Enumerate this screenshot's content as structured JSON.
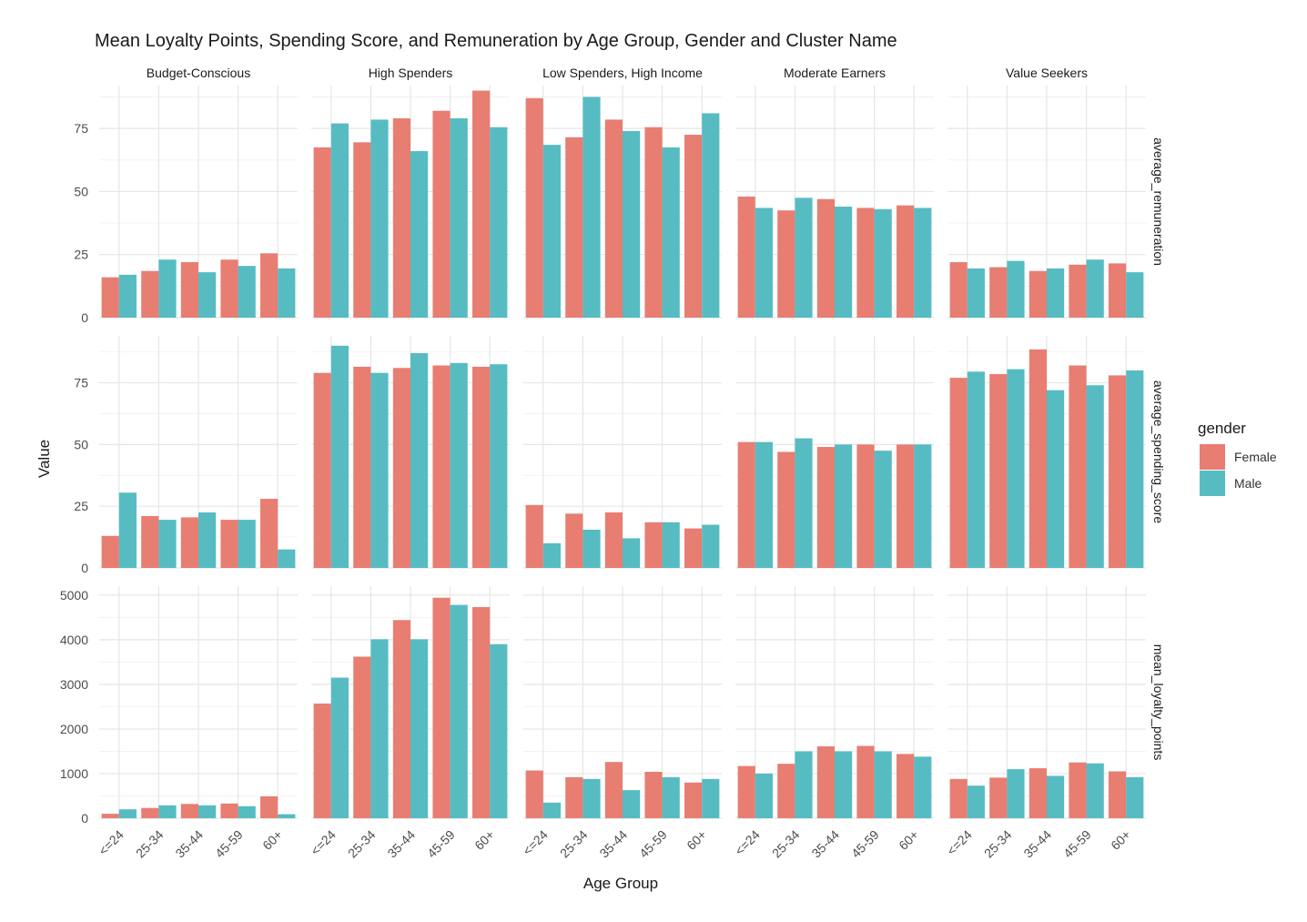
{
  "chart_data": {
    "type": "bar",
    "title": "Mean Loyalty Points, Spending Score, and Remuneration by Age Group, Gender and Cluster Name",
    "xlabel": "Age Group",
    "ylabel": "Value",
    "categories": [
      "<=24",
      "25-34",
      "35-44",
      "45-59",
      "60+"
    ],
    "facet_columns": [
      "Budget-Conscious",
      "High Spenders",
      "Low Spenders, High Income",
      "Moderate Earners",
      "Value Seekers"
    ],
    "legend": {
      "title": "gender",
      "position": "right",
      "entries": [
        {
          "label": "Female",
          "color": "#E87D72"
        },
        {
          "label": "Male",
          "color": "#56BCC2"
        }
      ]
    },
    "grid": true,
    "rows": [
      {
        "metric": "average_remuneration",
        "ylim": [
          0,
          92
        ],
        "yticks": [
          0,
          25,
          50,
          75
        ],
        "panels": [
          {
            "facet": "Budget-Conscious",
            "series": [
              {
                "name": "Female",
                "values": [
                  16,
                  18.5,
                  22,
                  23,
                  25.5
                ]
              },
              {
                "name": "Male",
                "values": [
                  17,
                  23,
                  18,
                  20.5,
                  19.5
                ]
              }
            ]
          },
          {
            "facet": "High Spenders",
            "series": [
              {
                "name": "Female",
                "values": [
                  67.5,
                  69.5,
                  79,
                  82,
                  90
                ]
              },
              {
                "name": "Male",
                "values": [
                  77,
                  78.5,
                  66,
                  79,
                  75.5
                ]
              }
            ]
          },
          {
            "facet": "Low Spenders, High Income",
            "series": [
              {
                "name": "Female",
                "values": [
                  87,
                  71.5,
                  78.5,
                  75.5,
                  72.5
                ]
              },
              {
                "name": "Male",
                "values": [
                  68.5,
                  87.5,
                  74,
                  67.5,
                  81
                ]
              }
            ]
          },
          {
            "facet": "Moderate Earners",
            "series": [
              {
                "name": "Female",
                "values": [
                  48,
                  42.5,
                  47,
                  43.5,
                  44.5
                ]
              },
              {
                "name": "Male",
                "values": [
                  43.5,
                  47.5,
                  44,
                  43,
                  43.5
                ]
              }
            ]
          },
          {
            "facet": "Value Seekers",
            "series": [
              {
                "name": "Female",
                "values": [
                  22,
                  20,
                  18.5,
                  21,
                  21.5
                ]
              },
              {
                "name": "Male",
                "values": [
                  19.5,
                  22.5,
                  19.5,
                  23,
                  18
                ]
              }
            ]
          }
        ]
      },
      {
        "metric": "average_spending_score",
        "ylim": [
          0,
          94
        ],
        "yticks": [
          0,
          25,
          50,
          75
        ],
        "panels": [
          {
            "facet": "Budget-Conscious",
            "series": [
              {
                "name": "Female",
                "values": [
                  13,
                  21,
                  20.5,
                  19.5,
                  28
                ]
              },
              {
                "name": "Male",
                "values": [
                  30.5,
                  19.5,
                  22.5,
                  19.5,
                  7.5
                ]
              }
            ]
          },
          {
            "facet": "High Spenders",
            "series": [
              {
                "name": "Female",
                "values": [
                  79,
                  81.5,
                  81,
                  82,
                  81.5
                ]
              },
              {
                "name": "Male",
                "values": [
                  90,
                  79,
                  87,
                  83,
                  82.5
                ]
              }
            ]
          },
          {
            "facet": "Low Spenders, High Income",
            "series": [
              {
                "name": "Female",
                "values": [
                  25.5,
                  22,
                  22.5,
                  18.5,
                  16
                ]
              },
              {
                "name": "Male",
                "values": [
                  10,
                  15.5,
                  12,
                  18.5,
                  17.5
                ]
              }
            ]
          },
          {
            "facet": "Moderate Earners",
            "series": [
              {
                "name": "Female",
                "values": [
                  51,
                  47,
                  49,
                  50,
                  50
                ]
              },
              {
                "name": "Male",
                "values": [
                  51,
                  52.5,
                  50,
                  47.5,
                  50
                ]
              }
            ]
          },
          {
            "facet": "Value Seekers",
            "series": [
              {
                "name": "Female",
                "values": [
                  77,
                  78.5,
                  88.5,
                  82,
                  78
                ]
              },
              {
                "name": "Male",
                "values": [
                  79.5,
                  80.5,
                  72,
                  74,
                  80
                ]
              }
            ]
          }
        ]
      },
      {
        "metric": "mean_loyalty_points",
        "ylim": [
          0,
          5200
        ],
        "yticks": [
          0,
          1000,
          2000,
          3000,
          4000,
          5000
        ],
        "panels": [
          {
            "facet": "Budget-Conscious",
            "series": [
              {
                "name": "Female",
                "values": [
                  100,
                  230,
                  320,
                  330,
                  490
                ]
              },
              {
                "name": "Male",
                "values": [
                  200,
                  290,
                  290,
                  270,
                  90
                ]
              }
            ]
          },
          {
            "facet": "High Spenders",
            "series": [
              {
                "name": "Female",
                "values": [
                  2570,
                  3620,
                  4440,
                  4940,
                  4730
                ]
              },
              {
                "name": "Male",
                "values": [
                  3150,
                  4010,
                  4010,
                  4780,
                  3900
                ]
              }
            ]
          },
          {
            "facet": "Low Spenders, High Income",
            "series": [
              {
                "name": "Female",
                "values": [
                  1070,
                  920,
                  1260,
                  1040,
                  800
                ]
              },
              {
                "name": "Male",
                "values": [
                  350,
                  880,
                  630,
                  920,
                  880
                ]
              }
            ]
          },
          {
            "facet": "Moderate Earners",
            "series": [
              {
                "name": "Female",
                "values": [
                  1170,
                  1220,
                  1610,
                  1620,
                  1440
                ]
              },
              {
                "name": "Male",
                "values": [
                  1000,
                  1500,
                  1500,
                  1500,
                  1380
                ]
              }
            ]
          },
          {
            "facet": "Value Seekers",
            "series": [
              {
                "name": "Female",
                "values": [
                  880,
                  910,
                  1120,
                  1250,
                  1050
                ]
              },
              {
                "name": "Male",
                "values": [
                  730,
                  1100,
                  950,
                  1230,
                  920
                ]
              }
            ]
          }
        ]
      }
    ]
  }
}
